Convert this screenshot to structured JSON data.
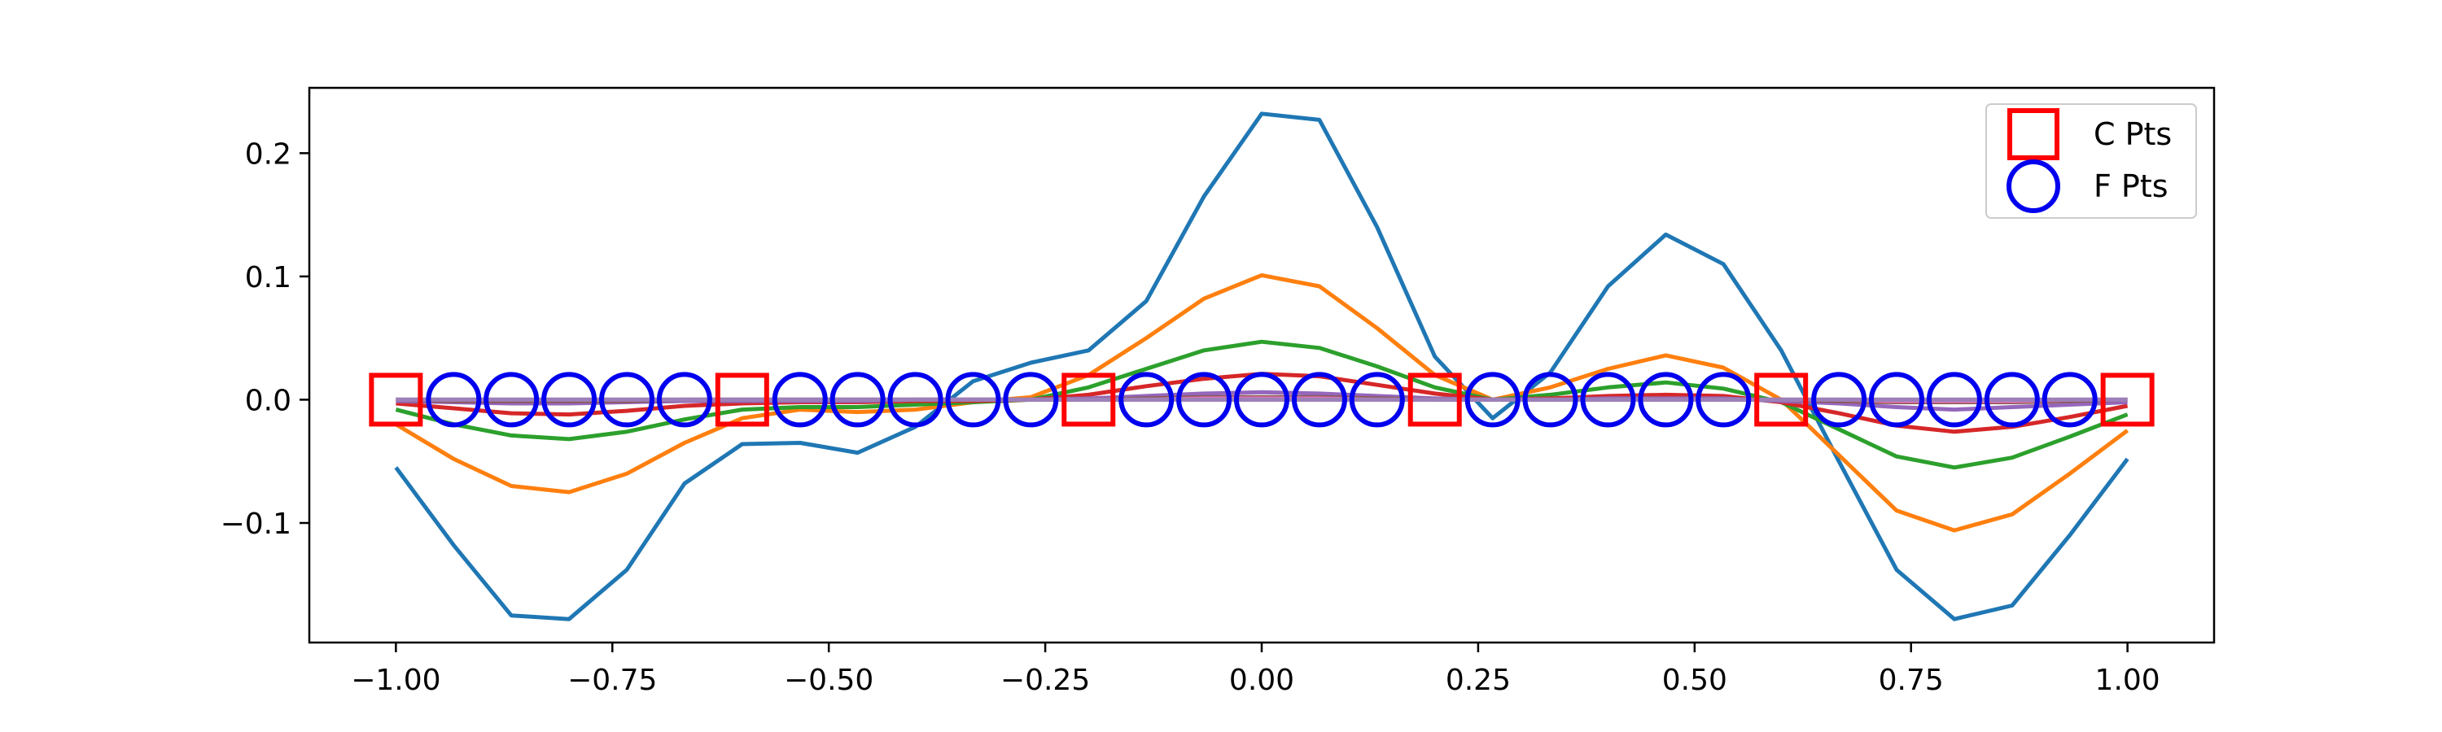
{
  "chart_data": {
    "type": "line",
    "title": "",
    "xlabel": "",
    "ylabel": "",
    "xlim": [
      -1.1,
      1.1
    ],
    "ylim": [
      -0.197,
      0.253
    ],
    "grid": false,
    "legend_placement": "top-right",
    "xticks": [
      {
        "value": -1.0,
        "label": "−1.00"
      },
      {
        "value": -0.75,
        "label": "−0.75"
      },
      {
        "value": -0.5,
        "label": "−0.50"
      },
      {
        "value": -0.25,
        "label": "−0.25"
      },
      {
        "value": 0.0,
        "label": "0.00"
      },
      {
        "value": 0.25,
        "label": "0.25"
      },
      {
        "value": 0.5,
        "label": "0.50"
      },
      {
        "value": 0.75,
        "label": "0.75"
      },
      {
        "value": 1.0,
        "label": "1.00"
      }
    ],
    "yticks": [
      {
        "value": -0.1,
        "label": "−0.1"
      },
      {
        "value": 0.0,
        "label": "0.0"
      },
      {
        "value": 0.1,
        "label": "0.1"
      },
      {
        "value": 0.2,
        "label": "0.2"
      }
    ],
    "x": [
      -1.0,
      -0.9333,
      -0.8667,
      -0.8,
      -0.7333,
      -0.6667,
      -0.6,
      -0.5333,
      -0.4667,
      -0.4,
      -0.3333,
      -0.2667,
      -0.2,
      -0.1333,
      -0.0667,
      0.0,
      0.0667,
      0.1333,
      0.2,
      0.2667,
      0.3333,
      0.4,
      0.4667,
      0.5333,
      0.6,
      0.6667,
      0.7333,
      0.8,
      0.8667,
      0.9333,
      1.0
    ],
    "series": [
      {
        "color": "#1f77b4",
        "values": [
          -0.055,
          -0.118,
          -0.175,
          -0.178,
          -0.138,
          -0.068,
          -0.036,
          -0.035,
          -0.043,
          -0.022,
          0.015,
          0.03,
          0.04,
          0.08,
          0.165,
          0.232,
          0.227,
          0.14,
          0.035,
          -0.015,
          0.022,
          0.092,
          0.134,
          0.11,
          0.04,
          -0.05,
          -0.138,
          -0.178,
          -0.167,
          -0.11,
          -0.048
        ]
      },
      {
        "color": "#ff7f0e",
        "values": [
          -0.02,
          -0.048,
          -0.07,
          -0.075,
          -0.06,
          -0.035,
          -0.015,
          -0.008,
          -0.01,
          -0.008,
          -0.002,
          0.002,
          0.02,
          0.05,
          0.082,
          0.101,
          0.092,
          0.058,
          0.02,
          0.0,
          0.01,
          0.025,
          0.036,
          0.026,
          0.0,
          -0.045,
          -0.09,
          -0.106,
          -0.093,
          -0.06,
          -0.025
        ]
      },
      {
        "color": "#2ca02c",
        "values": [
          -0.008,
          -0.02,
          -0.029,
          -0.032,
          -0.026,
          -0.016,
          -0.008,
          -0.006,
          -0.006,
          -0.004,
          -0.002,
          0.0,
          0.01,
          0.025,
          0.04,
          0.047,
          0.042,
          0.027,
          0.01,
          0.0,
          0.004,
          0.01,
          0.014,
          0.009,
          -0.002,
          -0.024,
          -0.046,
          -0.055,
          -0.047,
          -0.03,
          -0.012
        ]
      },
      {
        "color": "#d62728",
        "values": [
          -0.003,
          -0.007,
          -0.011,
          -0.012,
          -0.009,
          -0.005,
          -0.003,
          -0.002,
          -0.002,
          -0.001,
          -0.001,
          0.0,
          0.004,
          0.011,
          0.017,
          0.021,
          0.019,
          0.012,
          0.005,
          0.0,
          0.001,
          0.003,
          0.004,
          0.003,
          -0.002,
          -0.011,
          -0.021,
          -0.026,
          -0.022,
          -0.014,
          -0.005
        ]
      },
      {
        "color": "#9467bd",
        "values": [
          -0.001,
          -0.002,
          -0.003,
          -0.003,
          -0.002,
          -0.001,
          -0.001,
          -0.001,
          -0.001,
          0.0,
          0.0,
          0.0,
          0.001,
          0.003,
          0.005,
          0.006,
          0.005,
          0.003,
          0.001,
          0.0,
          0.0,
          0.001,
          0.001,
          0.001,
          -0.001,
          -0.003,
          -0.006,
          -0.008,
          -0.006,
          -0.004,
          -0.002
        ]
      },
      {
        "color": "#8c564b",
        "values": [
          0.0,
          -0.001,
          -0.001,
          -0.001,
          -0.001,
          0.0,
          0.0,
          0.0,
          0.0,
          0.0,
          0.0,
          0.0,
          0.0,
          0.001,
          0.002,
          0.002,
          0.002,
          0.001,
          0.0,
          0.0,
          0.0,
          0.0,
          0.0,
          0.0,
          0.0,
          -0.001,
          -0.002,
          -0.002,
          -0.002,
          -0.001,
          0.0
        ]
      },
      {
        "color": "#e377c2",
        "values": [
          0.0,
          0.0,
          0.0,
          0.0,
          0.0,
          0.0,
          0.0,
          0.0,
          0.0,
          0.0,
          0.0,
          0.0,
          0.0,
          0.0,
          0.001,
          0.001,
          0.001,
          0.0,
          0.0,
          0.0,
          0.0,
          0.0,
          0.0,
          0.0,
          0.0,
          0.0,
          -0.001,
          -0.001,
          -0.001,
          0.0,
          0.0
        ]
      },
      {
        "color": "#7f7f7f",
        "values": [
          0.0,
          0.0,
          0.0,
          0.0,
          0.0,
          0.0,
          0.0,
          0.0,
          0.0,
          0.0,
          0.0,
          0.0,
          0.0,
          0.0,
          0.0,
          0.0,
          0.0,
          0.0,
          0.0,
          0.0,
          0.0,
          0.0,
          0.0,
          0.0,
          0.0,
          0.0,
          0.0,
          0.0,
          0.0,
          0.0,
          0.0
        ]
      },
      {
        "color": "#9d7fb9",
        "values": [
          0.0,
          0.0,
          0.0,
          0.0,
          0.0,
          0.0,
          0.0,
          0.0,
          0.0,
          0.0,
          0.0,
          0.0,
          0.0,
          0.0,
          0.0,
          0.0,
          0.0,
          0.0,
          0.0,
          0.0,
          0.0,
          0.0,
          0.0,
          0.0,
          0.0,
          0.0,
          0.0,
          0.0,
          0.0,
          0.0,
          0.0
        ]
      }
    ],
    "c_points": {
      "name": "C Pts",
      "color": "#ff0000",
      "marker": "square",
      "x": [
        -1.0,
        -0.6,
        -0.2,
        0.2,
        0.6,
        1.0
      ],
      "y": [
        0,
        0,
        0,
        0,
        0,
        0
      ]
    },
    "f_points": {
      "name": "F Pts",
      "color": "#0000ee",
      "marker": "circle",
      "x": [
        -0.9333,
        -0.8667,
        -0.8,
        -0.7333,
        -0.6667,
        -0.5333,
        -0.4667,
        -0.4,
        -0.3333,
        -0.2667,
        -0.1333,
        -0.0667,
        0.0,
        0.0667,
        0.1333,
        0.2667,
        0.3333,
        0.4,
        0.4667,
        0.5333,
        0.6667,
        0.7333,
        0.8,
        0.8667,
        0.9333
      ],
      "y": [
        0,
        0,
        0,
        0,
        0,
        0,
        0,
        0,
        0,
        0,
        0,
        0,
        0,
        0,
        0,
        0,
        0,
        0,
        0,
        0,
        0,
        0,
        0,
        0,
        0
      ]
    },
    "legend": [
      {
        "label": "C Pts",
        "marker": "square",
        "color": "#ff0000"
      },
      {
        "label": "F Pts",
        "marker": "circle",
        "color": "#0000ee"
      }
    ]
  }
}
